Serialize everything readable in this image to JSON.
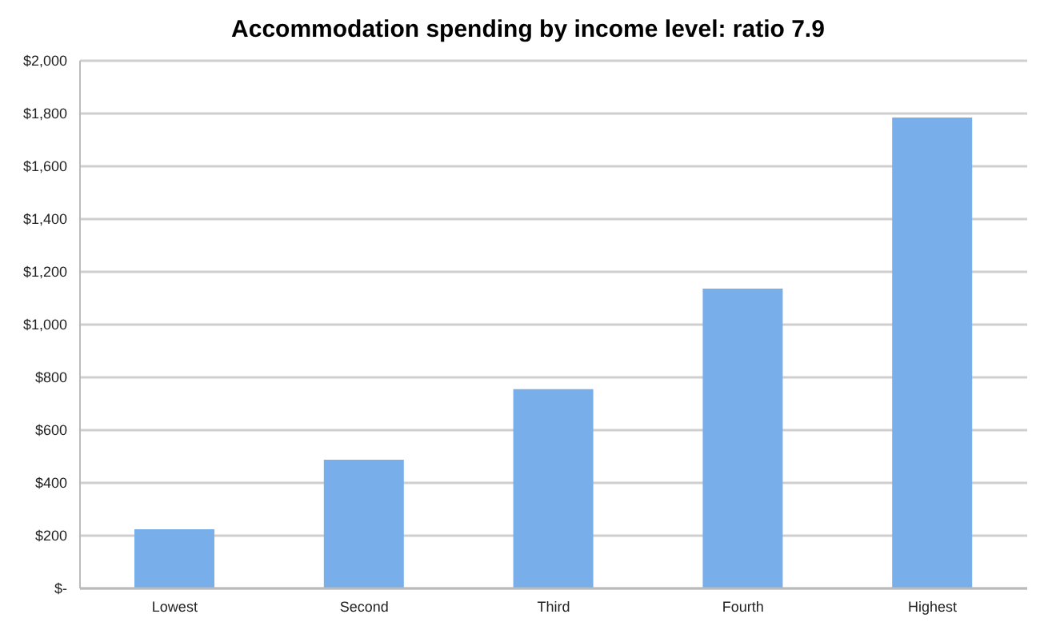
{
  "chart_data": {
    "type": "bar",
    "title": "Accommodation spending by income level: ratio 7.9",
    "categories": [
      "Lowest",
      "Second",
      "Third",
      "Fourth",
      "Highest"
    ],
    "values": [
      224,
      488,
      755,
      1136,
      1785
    ],
    "color": "#78aee9",
    "ylim": [
      0,
      2000
    ],
    "yticks": [
      {
        "value": 0,
        "label": "$-"
      },
      {
        "value": 200,
        "label": "$200"
      },
      {
        "value": 400,
        "label": "$400"
      },
      {
        "value": 600,
        "label": "$600"
      },
      {
        "value": 800,
        "label": "$800"
      },
      {
        "value": 1000,
        "label": "$1,000"
      },
      {
        "value": 1200,
        "label": "$1,200"
      },
      {
        "value": 1400,
        "label": "$1,400"
      },
      {
        "value": 1600,
        "label": "$1,600"
      },
      {
        "value": 1800,
        "label": "$1,800"
      },
      {
        "value": 2000,
        "label": "$2,000"
      }
    ],
    "grid": "y"
  }
}
